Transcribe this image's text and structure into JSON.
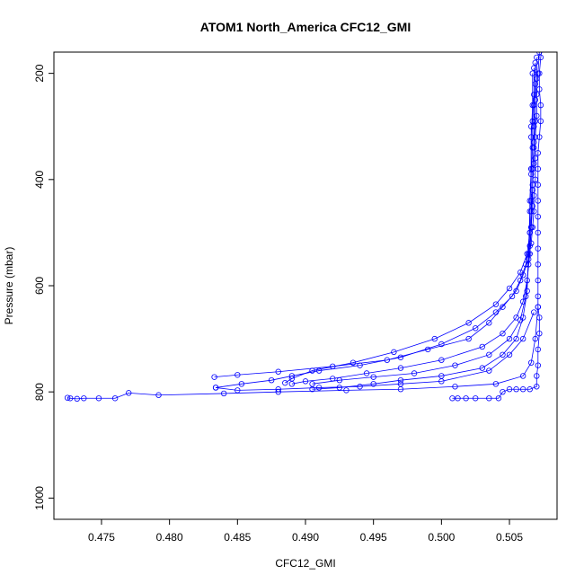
{
  "chart_data": {
    "type": "scatter",
    "title": "ATOM1 North_America CFC12_GMI",
    "xlabel": "CFC12_GMI",
    "ylabel": "Pressure (mbar)",
    "xlim": [
      0.4715,
      0.5085
    ],
    "ylim": [
      1040,
      160
    ],
    "y_axis_inverted": true,
    "grid": false,
    "legend": "none",
    "x_ticks": [
      "0.475",
      "0.480",
      "0.485",
      "0.490",
      "0.495",
      "0.500",
      "0.505"
    ],
    "y_ticks": [
      "200",
      "400",
      "600",
      "800",
      "1000"
    ],
    "marker": "open-circle",
    "color": "#0000ff",
    "series": [
      {
        "points": [
          [
            0.5074,
            150
          ],
          [
            0.5073,
            170
          ],
          [
            0.5072,
            200
          ],
          [
            0.5072,
            230
          ],
          [
            0.5073,
            260
          ],
          [
            0.5073,
            290
          ],
          [
            0.5072,
            320
          ],
          [
            0.5071,
            350
          ],
          [
            0.5071,
            380
          ],
          [
            0.5071,
            410
          ],
          [
            0.5071,
            440
          ],
          [
            0.5071,
            470
          ],
          [
            0.5071,
            500
          ],
          [
            0.5071,
            530
          ],
          [
            0.5071,
            560
          ],
          [
            0.5071,
            590
          ],
          [
            0.5071,
            620
          ],
          [
            0.5071,
            640
          ],
          [
            0.5072,
            660
          ],
          [
            0.5072,
            690
          ],
          [
            0.5071,
            720
          ],
          [
            0.5071,
            750
          ],
          [
            0.507,
            770
          ],
          [
            0.507,
            790
          ],
          [
            0.5065,
            795
          ],
          [
            0.506,
            795
          ],
          [
            0.5055,
            795
          ],
          [
            0.505,
            795
          ],
          [
            0.5045,
            800
          ],
          [
            0.5042,
            812
          ],
          [
            0.5035,
            812
          ],
          [
            0.5025,
            812
          ],
          [
            0.5018,
            812
          ],
          [
            0.5012,
            812
          ],
          [
            0.5008,
            812
          ]
        ]
      },
      {
        "points": [
          [
            0.5072,
            160
          ],
          [
            0.5071,
            200
          ],
          [
            0.507,
            240
          ],
          [
            0.507,
            280
          ],
          [
            0.5069,
            320
          ],
          [
            0.5069,
            360
          ],
          [
            0.5069,
            400
          ],
          [
            0.5068,
            430
          ],
          [
            0.5068,
            460
          ],
          [
            0.5067,
            490
          ],
          [
            0.5066,
            520
          ],
          [
            0.5064,
            550
          ],
          [
            0.506,
            580
          ],
          [
            0.5055,
            610
          ],
          [
            0.5045,
            640
          ],
          [
            0.5035,
            670
          ],
          [
            0.502,
            700
          ],
          [
            0.499,
            720
          ],
          [
            0.496,
            740
          ],
          [
            0.492,
            752
          ],
          [
            0.488,
            762
          ],
          [
            0.485,
            768
          ],
          [
            0.4833,
            772
          ]
        ]
      },
      {
        "points": [
          [
            0.507,
            170
          ],
          [
            0.507,
            210
          ],
          [
            0.5069,
            250
          ],
          [
            0.5069,
            290
          ],
          [
            0.5068,
            330
          ],
          [
            0.5068,
            370
          ],
          [
            0.5067,
            410
          ],
          [
            0.5067,
            450
          ],
          [
            0.5066,
            490
          ],
          [
            0.5065,
            525
          ],
          [
            0.5062,
            560
          ],
          [
            0.5058,
            590
          ],
          [
            0.5052,
            620
          ],
          [
            0.504,
            650
          ],
          [
            0.5025,
            680
          ],
          [
            0.5,
            710
          ],
          [
            0.497,
            735
          ],
          [
            0.494,
            750
          ],
          [
            0.491,
            760
          ],
          [
            0.489,
            770
          ],
          [
            0.4875,
            778
          ],
          [
            0.4853,
            785
          ],
          [
            0.4834,
            792
          ]
        ]
      },
      {
        "points": [
          [
            0.5069,
            180
          ],
          [
            0.5069,
            220
          ],
          [
            0.5068,
            260
          ],
          [
            0.5068,
            300
          ],
          [
            0.5068,
            340
          ],
          [
            0.5067,
            380
          ],
          [
            0.5067,
            420
          ],
          [
            0.5066,
            460
          ],
          [
            0.5065,
            500
          ],
          [
            0.5063,
            540
          ],
          [
            0.5058,
            575
          ],
          [
            0.505,
            605
          ],
          [
            0.504,
            635
          ],
          [
            0.502,
            670
          ],
          [
            0.4995,
            700
          ],
          [
            0.4965,
            725
          ],
          [
            0.4935,
            745
          ],
          [
            0.4905,
            760
          ],
          [
            0.489,
            775
          ],
          [
            0.4885,
            783
          ]
        ]
      },
      {
        "points": [
          [
            0.5068,
            190
          ],
          [
            0.5068,
            240
          ],
          [
            0.5067,
            290
          ],
          [
            0.5067,
            340
          ],
          [
            0.5066,
            390
          ],
          [
            0.5066,
            440
          ],
          [
            0.5066,
            490
          ],
          [
            0.5065,
            540
          ],
          [
            0.5063,
            590
          ],
          [
            0.506,
            630
          ],
          [
            0.5055,
            660
          ],
          [
            0.5045,
            690
          ],
          [
            0.503,
            715
          ],
          [
            0.5,
            740
          ],
          [
            0.497,
            755
          ],
          [
            0.4945,
            765
          ],
          [
            0.492,
            775
          ],
          [
            0.49,
            780
          ],
          [
            0.489,
            785
          ]
        ]
      },
      {
        "points": [
          [
            0.5067,
            200
          ],
          [
            0.5067,
            260
          ],
          [
            0.5066,
            320
          ],
          [
            0.5066,
            380
          ],
          [
            0.5065,
            440
          ],
          [
            0.5065,
            500
          ],
          [
            0.5064,
            560
          ],
          [
            0.5062,
            620
          ],
          [
            0.5058,
            665
          ],
          [
            0.505,
            700
          ],
          [
            0.5035,
            730
          ],
          [
            0.501,
            750
          ],
          [
            0.498,
            765
          ],
          [
            0.495,
            772
          ],
          [
            0.4925,
            778
          ],
          [
            0.4905,
            785
          ]
        ]
      },
      {
        "points": [
          [
            0.5066,
            300
          ],
          [
            0.5066,
            380
          ],
          [
            0.5065,
            460
          ],
          [
            0.5064,
            540
          ],
          [
            0.5063,
            610
          ],
          [
            0.506,
            660
          ],
          [
            0.5055,
            700
          ],
          [
            0.5045,
            730
          ],
          [
            0.503,
            755
          ],
          [
            0.5,
            770
          ],
          [
            0.497,
            778
          ],
          [
            0.495,
            785
          ],
          [
            0.4925,
            792
          ],
          [
            0.4905,
            795
          ]
        ]
      },
      {
        "points": [
          [
            0.5068,
            650
          ],
          [
            0.506,
            700
          ],
          [
            0.505,
            730
          ],
          [
            0.5035,
            760
          ],
          [
            0.5,
            780
          ],
          [
            0.497,
            785
          ],
          [
            0.494,
            790
          ],
          [
            0.491,
            792
          ],
          [
            0.488,
            795
          ],
          [
            0.485,
            797
          ],
          [
            0.4834,
            792
          ]
        ]
      },
      {
        "points": [
          [
            0.5071,
            640
          ],
          [
            0.5069,
            700
          ],
          [
            0.5066,
            745
          ],
          [
            0.506,
            770
          ],
          [
            0.504,
            785
          ],
          [
            0.501,
            790
          ],
          [
            0.497,
            795
          ],
          [
            0.493,
            797
          ],
          [
            0.488,
            800
          ],
          [
            0.484,
            803
          ],
          [
            0.4792,
            806
          ],
          [
            0.477,
            802
          ],
          [
            0.476,
            812
          ],
          [
            0.4748,
            812
          ],
          [
            0.4737,
            812
          ],
          [
            0.4732,
            813
          ],
          [
            0.4727,
            812
          ],
          [
            0.4725,
            811
          ]
        ]
      }
    ]
  }
}
